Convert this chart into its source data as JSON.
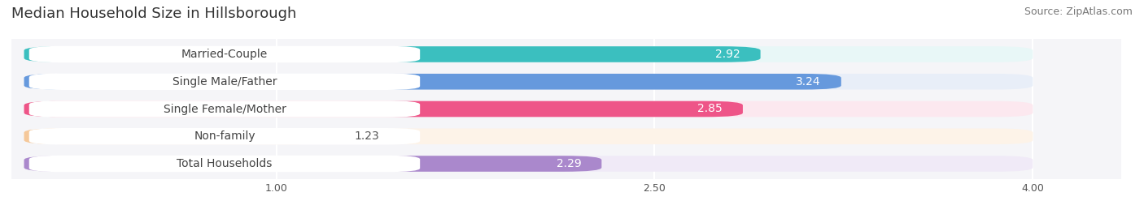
{
  "title": "Median Household Size in Hillsborough",
  "source": "Source: ZipAtlas.com",
  "categories": [
    "Married-Couple",
    "Single Male/Father",
    "Single Female/Mother",
    "Non-family",
    "Total Households"
  ],
  "values": [
    2.92,
    3.24,
    2.85,
    1.23,
    2.29
  ],
  "bar_colors": [
    "#3bbfbf",
    "#6699dd",
    "#ee5588",
    "#f5c89a",
    "#aa88cc"
  ],
  "bar_bg_colors": [
    "#e8f7f7",
    "#e8eef8",
    "#fce8ef",
    "#fdf3e8",
    "#f0eaf7"
  ],
  "label_colors": [
    "#3bbfbf",
    "#6699dd",
    "#ee5588",
    "#c8a060",
    "#9970bb"
  ],
  "xlim_data": [
    0,
    4.3
  ],
  "data_min": 1.0,
  "data_max": 4.0,
  "xticks": [
    1.0,
    2.5,
    4.0
  ],
  "background_color": "#ffffff",
  "plot_bg_color": "#f5f5f8",
  "title_fontsize": 13,
  "source_fontsize": 9,
  "label_fontsize": 10,
  "value_fontsize": 10
}
